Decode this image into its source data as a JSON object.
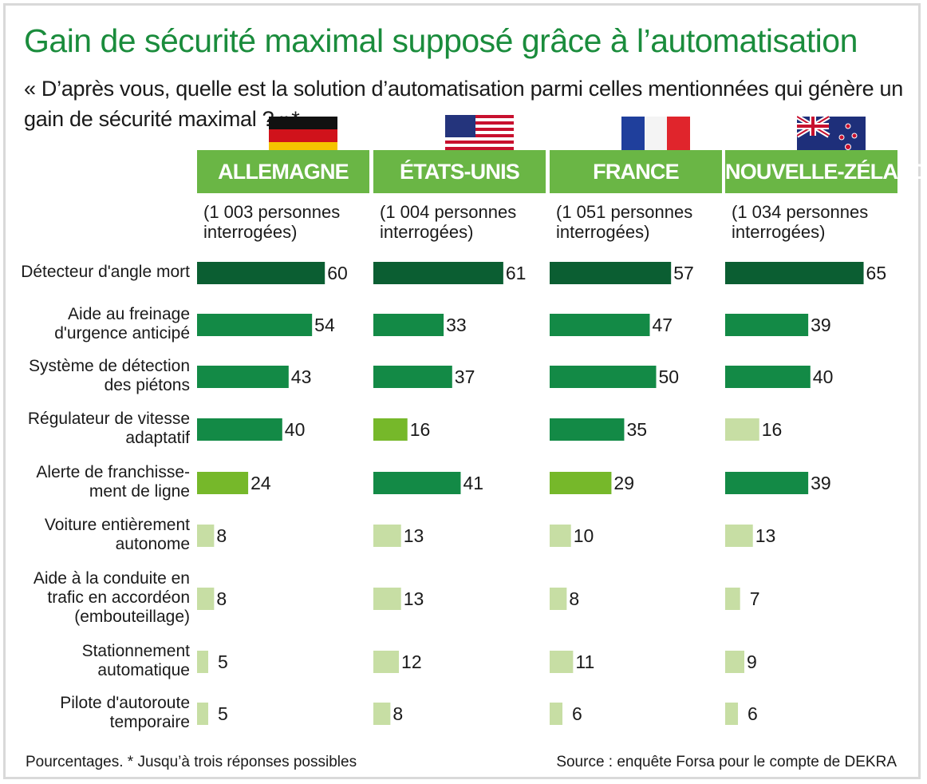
{
  "title": "Gain de sécurité maximal supposé grâce à l’automatisation",
  "subtitle": "« D’après vous, quelle est la solution d’automatisation parmi celles mentionnées qui génère un gain de sécurité maximal ? »*",
  "footnote": "Pourcentages. * Jusqu’à trois réponses possibles",
  "source": "Source : enquête Forsa pour le compte de DEKRA",
  "colors": {
    "title": "#1a8c3c",
    "header_bg": "#6ab645",
    "level_top": "#0b5e32",
    "level_high": "#138a46",
    "level_mid": "#76b82a",
    "level_low": "#c7dea4"
  },
  "chart_data": {
    "type": "bar",
    "orientation": "horizontal",
    "unit": "%",
    "categories": [
      "Détecteur d'angle mort",
      "Aide au freinage d'urgence anticipé",
      "Système de détection des piétons",
      "Régulateur de vitesse adaptatif",
      "Alerte de franchisse-ment de ligne",
      "Voiture entièrement autonome",
      "Aide à la conduite en trafic en accordéon (embouteillage)",
      "Stationnement automatique",
      "Pilote d'autoroute temporaire"
    ],
    "category_lines": [
      [
        "Détecteur d'angle mort"
      ],
      [
        "Aide au freinage",
        "d'urgence anticipé"
      ],
      [
        "Système de détection",
        "des piétons"
      ],
      [
        "Régulateur de vitesse",
        "adaptatif"
      ],
      [
        "Alerte de franchisse-",
        "ment de ligne"
      ],
      [
        "Voiture entièrement",
        "autonome"
      ],
      [
        "Aide à la conduite en",
        "trafic en accordéon",
        "(embouteillage)"
      ],
      [
        "Stationnement",
        "automatique"
      ],
      [
        "Pilote d'autoroute",
        "temporaire"
      ]
    ],
    "series": [
      {
        "name": "ALLEMAGNE",
        "sample": "(1 003 personnes interrogées)",
        "flag": "flag-germany",
        "values": [
          60,
          54,
          43,
          40,
          24,
          8,
          8,
          5,
          5
        ],
        "levels": [
          "top",
          "high",
          "high",
          "high",
          "mid",
          "low",
          "low",
          "low",
          "low"
        ]
      },
      {
        "name": "ÉTATS-UNIS",
        "sample": "(1 004 personnes interrogées)",
        "flag": "flag-usa",
        "values": [
          61,
          33,
          37,
          16,
          41,
          13,
          13,
          12,
          8
        ],
        "levels": [
          "top",
          "high",
          "high",
          "mid",
          "high",
          "low",
          "low",
          "low",
          "low"
        ]
      },
      {
        "name": "FRANCE",
        "sample": "(1 051 personnes interrogées)",
        "flag": "flag-france",
        "values": [
          57,
          47,
          50,
          35,
          29,
          10,
          8,
          11,
          6
        ],
        "levels": [
          "top",
          "high",
          "high",
          "high",
          "mid",
          "low",
          "low",
          "low",
          "low"
        ]
      },
      {
        "name": "NOUVELLE-ZÉLANDE",
        "sample": "(1 034 personnes interrogées)",
        "flag": "flag-new-zealand",
        "values": [
          65,
          39,
          40,
          16,
          39,
          13,
          7,
          9,
          6
        ],
        "levels": [
          "top",
          "high",
          "high",
          "low",
          "high",
          "low",
          "low",
          "low",
          "low"
        ]
      }
    ]
  }
}
